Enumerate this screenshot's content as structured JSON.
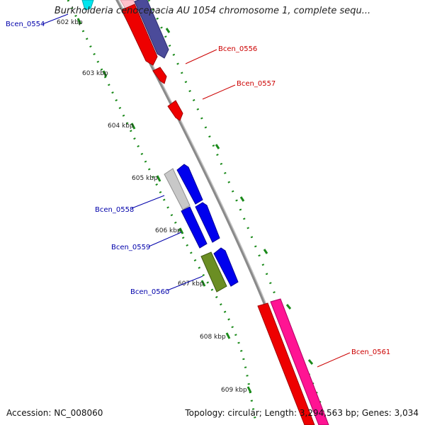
{
  "title": "Burkholderia cenocepacia AU 1054 chromosome 1, complete sequ...",
  "footer": {
    "accession": "Accession: NC_008060",
    "summary": "Topology: circular; Length: 3,294,563 bp; Genes: 3,034"
  },
  "ticks": [
    "602 kbp",
    "603 kbp",
    "604 kbp",
    "605 kbp",
    "606 kbp",
    "607 kbp",
    "608 kbp",
    "609 kbp"
  ],
  "gene_labels": [
    {
      "name": "Bcen_0554",
      "color": "#0000aa"
    },
    {
      "name": "Bcen_0556",
      "color": "#cc0000"
    },
    {
      "name": "Bcen_0557",
      "color": "#cc0000"
    },
    {
      "name": "Bcen_0558",
      "color": "#0000aa"
    },
    {
      "name": "Bcen_0559",
      "color": "#0000aa"
    },
    {
      "name": "Bcen_0560",
      "color": "#0000aa"
    },
    {
      "name": "Bcen_0561",
      "color": "#cc0000"
    }
  ],
  "colors": {
    "backbone": "#8a8a8a",
    "tick_mark": "#1a8a1a",
    "forward_red": "#ee0000",
    "blue": "#0000ee",
    "slate": "#4b4b9a",
    "gray": "#c8c8c8",
    "olive": "#6b8e23",
    "pink": "#ff1493",
    "pink_light": "#ffc0cb",
    "cyan": "#00e5ee"
  }
}
